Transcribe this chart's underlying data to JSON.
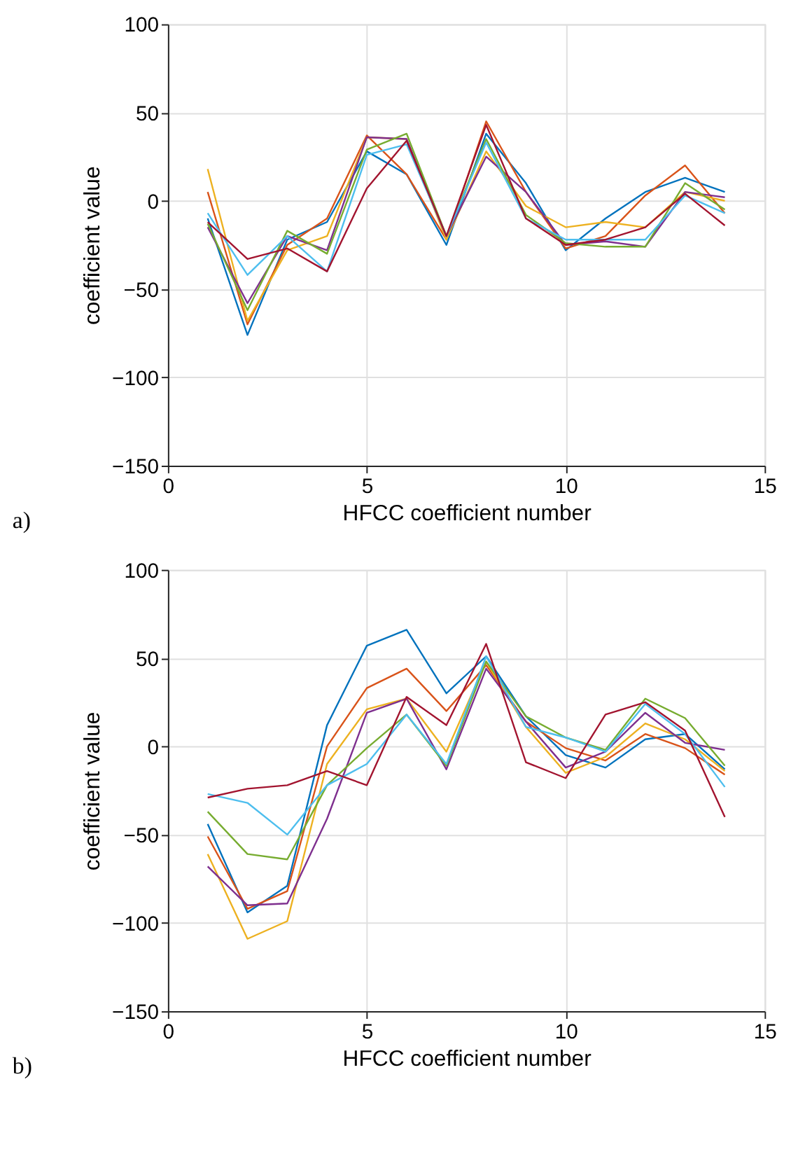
{
  "chart_data": [
    {
      "type": "line",
      "xlabel": "HFCC coefficient number",
      "ylabel": "coefficient value",
      "x": [
        1,
        2,
        3,
        4,
        5,
        6,
        7,
        8,
        9,
        10,
        11,
        12,
        13,
        14
      ],
      "xlim": [
        0,
        15
      ],
      "xticks": [
        0,
        5,
        10,
        15
      ],
      "ylim": [
        -150,
        100
      ],
      "yticks": [
        -150,
        -100,
        -50,
        0,
        50,
        100
      ],
      "grid": true,
      "legend": false,
      "marker": "none",
      "line_style": "solid",
      "annotations": [
        "a)"
      ],
      "series": [
        {
          "color": "#0072bd",
          "values": [
            -10,
            -76,
            -22,
            -12,
            28,
            15,
            -25,
            38,
            10,
            -28,
            -10,
            5,
            13,
            5
          ]
        },
        {
          "color": "#d95319",
          "values": [
            5,
            -70,
            -25,
            -10,
            37,
            15,
            -22,
            45,
            5,
            -27,
            -20,
            3,
            20,
            -7
          ]
        },
        {
          "color": "#edb120",
          "values": [
            18,
            -68,
            -28,
            -20,
            36,
            35,
            -22,
            28,
            -3,
            -15,
            -12,
            -15,
            5,
            0
          ]
        },
        {
          "color": "#7e2f8e",
          "values": [
            -15,
            -58,
            -20,
            -28,
            36,
            35,
            -20,
            25,
            5,
            -25,
            -23,
            -26,
            5,
            2
          ]
        },
        {
          "color": "#77ac30",
          "values": [
            -13,
            -62,
            -17,
            -30,
            29,
            38,
            -20,
            35,
            -8,
            -24,
            -26,
            -26,
            10,
            -5
          ]
        },
        {
          "color": "#4dbeee",
          "values": [
            -7,
            -42,
            -20,
            -40,
            26,
            32,
            -20,
            33,
            -10,
            -22,
            -22,
            -22,
            3,
            -7
          ]
        },
        {
          "color": "#a2142f",
          "values": [
            -12,
            -33,
            -27,
            -40,
            7,
            34,
            -20,
            43,
            -10,
            -25,
            -22,
            -15,
            4,
            -14
          ]
        }
      ]
    },
    {
      "type": "line",
      "xlabel": "HFCC coefficient number",
      "ylabel": "coefficient value",
      "x": [
        1,
        2,
        3,
        4,
        5,
        6,
        7,
        8,
        9,
        10,
        11,
        12,
        13,
        14
      ],
      "xlim": [
        0,
        15
      ],
      "xticks": [
        0,
        5,
        10,
        15
      ],
      "ylim": [
        -150,
        100
      ],
      "yticks": [
        -150,
        -100,
        -50,
        0,
        50,
        100
      ],
      "grid": true,
      "legend": false,
      "marker": "none",
      "line_style": "solid",
      "annotations": [
        "b)"
      ],
      "series": [
        {
          "color": "#0072bd",
          "values": [
            -44,
            -94,
            -79,
            12,
            57,
            66,
            30,
            51,
            17,
            -5,
            -12,
            4,
            7,
            -13
          ]
        },
        {
          "color": "#d95319",
          "values": [
            -51,
            -92,
            -82,
            0,
            33,
            44,
            20,
            46,
            14,
            -1,
            -8,
            7,
            -1,
            -16
          ]
        },
        {
          "color": "#edb120",
          "values": [
            -61,
            -109,
            -99,
            -10,
            21,
            27,
            -3,
            48,
            11,
            -15,
            -6,
            13,
            4,
            -14
          ]
        },
        {
          "color": "#7e2f8e",
          "values": [
            -68,
            -90,
            -89,
            -41,
            19,
            27,
            -13,
            44,
            14,
            -12,
            -3,
            19,
            2,
            -2
          ]
        },
        {
          "color": "#77ac30",
          "values": [
            -37,
            -61,
            -64,
            -22,
            -1,
            18,
            -11,
            48,
            17,
            5,
            -2,
            27,
            16,
            -11
          ]
        },
        {
          "color": "#4dbeee",
          "values": [
            -27,
            -32,
            -50,
            -22,
            -10,
            18,
            -10,
            51,
            11,
            5,
            -3,
            24,
            7,
            -23
          ]
        },
        {
          "color": "#a2142f",
          "values": [
            -29,
            -24,
            -22,
            -14,
            -22,
            28,
            12,
            58,
            -9,
            -18,
            18,
            25,
            9,
            -40
          ]
        }
      ]
    }
  ]
}
